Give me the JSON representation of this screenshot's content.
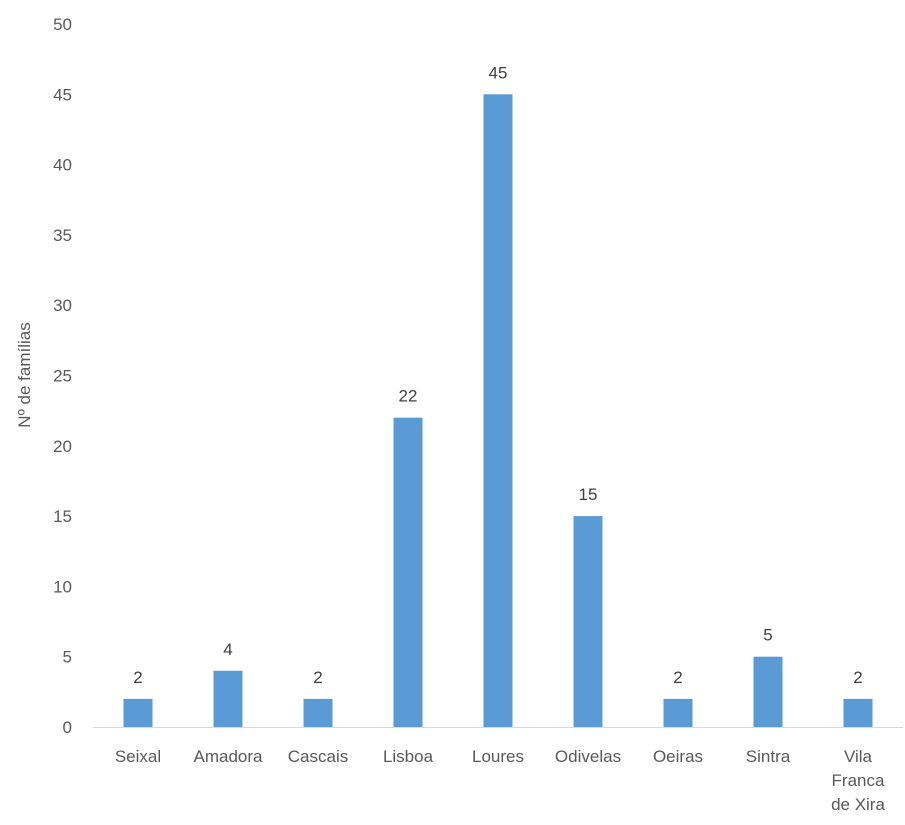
{
  "chart_data": {
    "type": "bar",
    "categories": [
      "Seixal",
      "Amadora",
      "Cascais",
      "Lisboa",
      "Loures",
      "Odivelas",
      "Oeiras",
      "Sintra",
      "Vila Franca de Xira"
    ],
    "values": [
      2,
      4,
      2,
      22,
      45,
      15,
      2,
      5,
      2
    ],
    "ylabel": "Nº de famílias",
    "xlabel": "",
    "ylim": [
      0,
      50
    ],
    "yticks": [
      0,
      5,
      10,
      15,
      20,
      25,
      30,
      35,
      40,
      45,
      50
    ],
    "grid": false,
    "data_labels": true,
    "bar_color": "#5B9BD5"
  }
}
